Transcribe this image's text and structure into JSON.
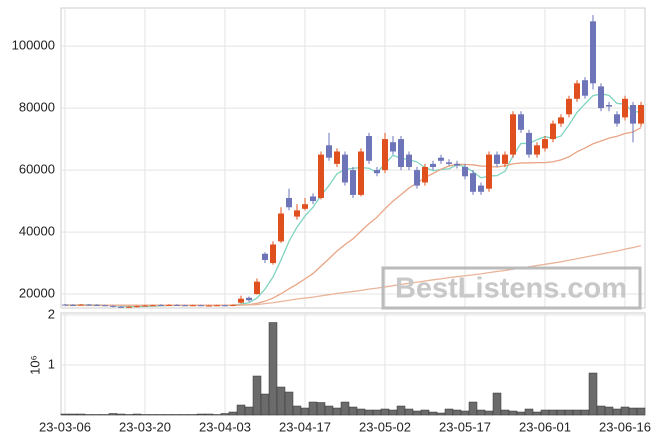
{
  "chart_data": [
    {
      "type": "candlestick",
      "categories": [
        "23-03-06",
        null,
        null,
        null,
        null,
        null,
        null,
        null,
        null,
        null,
        "23-03-20",
        null,
        null,
        null,
        null,
        null,
        null,
        null,
        null,
        null,
        "23-04-03",
        null,
        null,
        null,
        null,
        null,
        null,
        null,
        null,
        null,
        "23-04-17",
        null,
        null,
        null,
        null,
        null,
        null,
        null,
        null,
        null,
        "23-05-02",
        null,
        null,
        null,
        null,
        null,
        null,
        null,
        null,
        null,
        "23-05-17",
        null,
        null,
        null,
        null,
        null,
        null,
        null,
        null,
        null,
        "23-06-01",
        null,
        null,
        null,
        null,
        null,
        null,
        null,
        null,
        null,
        "23-06-16",
        null,
        null
      ],
      "open": [
        16600,
        16500,
        16500,
        16600,
        16500,
        16400,
        16200,
        15900,
        15800,
        15900,
        16200,
        16300,
        16500,
        16400,
        16500,
        16400,
        16300,
        16400,
        16200,
        16300,
        16400,
        16300,
        17200,
        18800,
        20000,
        33000,
        30000,
        37000,
        51000,
        45000,
        47500,
        51500,
        51000,
        68000,
        62000,
        65000,
        60000,
        52000,
        71000,
        60000,
        60000,
        69000,
        70000,
        65000,
        60000,
        56000,
        62000,
        64000,
        62500,
        62000,
        61000,
        59000,
        55000,
        54000,
        65000,
        62000,
        65000,
        78000,
        72000,
        65000,
        67000,
        70000,
        75000,
        78000,
        83000,
        89000,
        108000,
        87000,
        81000,
        78000,
        77000,
        81000,
        75000
      ],
      "high": [
        16800,
        16700,
        16800,
        16800,
        16700,
        16600,
        16400,
        16100,
        16100,
        16300,
        16500,
        16600,
        16700,
        16700,
        16700,
        16600,
        16600,
        16600,
        16500,
        16600,
        16600,
        16700,
        19500,
        19200,
        25000,
        33500,
        37000,
        48000,
        54000,
        49000,
        51000,
        52500,
        66000,
        72000,
        67000,
        66000,
        61000,
        67000,
        72000,
        61000,
        72000,
        71000,
        71000,
        66000,
        61000,
        62000,
        63000,
        65000,
        63500,
        63000,
        62000,
        60000,
        56000,
        66000,
        66000,
        66000,
        79000,
        79000,
        73000,
        69000,
        71000,
        76000,
        78000,
        84000,
        89000,
        90000,
        110000,
        88000,
        82000,
        79000,
        84000,
        82000,
        82000
      ],
      "low": [
        16300,
        16200,
        16300,
        16300,
        16200,
        16100,
        15700,
        15600,
        15600,
        15700,
        16000,
        16100,
        16200,
        16200,
        16200,
        16100,
        16100,
        16100,
        16000,
        16100,
        16100,
        16100,
        17000,
        17500,
        19800,
        30000,
        29500,
        36500,
        47000,
        44000,
        47000,
        49000,
        50500,
        63000,
        61000,
        55000,
        51000,
        51500,
        62000,
        58000,
        59000,
        65000,
        60000,
        60000,
        54000,
        55000,
        60000,
        62000,
        61500,
        60500,
        57000,
        52000,
        52000,
        53000,
        61000,
        61000,
        64000,
        72000,
        64000,
        64000,
        66000,
        69000,
        74000,
        77000,
        82000,
        83000,
        86000,
        79000,
        79000,
        74000,
        76000,
        69000,
        74000
      ],
      "close": [
        16500,
        16400,
        16600,
        16500,
        16400,
        16300,
        15900,
        15800,
        15900,
        16100,
        16300,
        16400,
        16400,
        16500,
        16400,
        16300,
        16400,
        16300,
        16300,
        16400,
        16300,
        16500,
        18500,
        18000,
        24000,
        31000,
        36000,
        46000,
        48000,
        47000,
        49000,
        50000,
        65000,
        64000,
        66000,
        56000,
        52000,
        66000,
        63000,
        59000,
        70000,
        66000,
        61000,
        61000,
        55000,
        61000,
        61000,
        63000,
        62000,
        61500,
        58000,
        53000,
        53000,
        65000,
        62000,
        65000,
        78000,
        73000,
        65000,
        68000,
        70000,
        75000,
        77000,
        83000,
        88000,
        84000,
        88000,
        80000,
        80500,
        75000,
        83000,
        75000,
        81000
      ],
      "up_color": "#e0501e",
      "down_color": "#6e74b8",
      "series": [
        {
          "color": "#7fd4c0",
          "values": [
            16500,
            16500,
            16500,
            16500,
            16500,
            16400,
            16200,
            16100,
            16000,
            16000,
            16000,
            16100,
            16200,
            16300,
            16400,
            16400,
            16400,
            16400,
            16300,
            16300,
            16300,
            16400,
            16800,
            17200,
            18700,
            21600,
            25500,
            31000,
            37000,
            41600,
            45200,
            48000,
            51800,
            55000,
            58800,
            60200,
            60600,
            60800,
            60600,
            59200,
            62000,
            64800,
            63800,
            63400,
            62600,
            60800,
            59800,
            60200,
            60400,
            61700,
            61100,
            59500,
            57500,
            58100,
            58200,
            59600,
            64600,
            68600,
            68600,
            69800,
            70800,
            70200,
            71000,
            74600,
            78600,
            81400,
            84000,
            84600,
            84100,
            81500,
            81300,
            78700,
            78900
          ]
        },
        {
          "color": "#e8a585",
          "values": [
            16400,
            16400,
            16400,
            16400,
            16400,
            16400,
            16400,
            16400,
            16400,
            16400,
            16400,
            16400,
            16400,
            16400,
            16400,
            16400,
            16400,
            16400,
            16400,
            16400,
            16400,
            16400,
            16500,
            16600,
            17000,
            17700,
            18700,
            20100,
            21700,
            23200,
            24900,
            26600,
            29000,
            31400,
            33900,
            36000,
            37800,
            40300,
            42700,
            44800,
            47500,
            50000,
            52100,
            54200,
            55800,
            57600,
            58900,
            60300,
            61300,
            61900,
            61800,
            61700,
            61300,
            61200,
            61000,
            61400,
            62000,
            62300,
            62300,
            62400,
            62400,
            62700,
            63300,
            64300,
            65900,
            67100,
            68500,
            69400,
            70300,
            70900,
            71800,
            72300,
            73700
          ]
        },
        {
          "color": "#eab59a",
          "values": [
            16300,
            16300,
            16300,
            16300,
            16300,
            16300,
            16300,
            16300,
            16300,
            16300,
            16300,
            16300,
            16300,
            16300,
            16300,
            16300,
            16300,
            16300,
            16300,
            16300,
            16300,
            16300,
            16400,
            16500,
            16600,
            16900,
            17200,
            17600,
            18000,
            18400,
            18700,
            19000,
            19400,
            19800,
            20200,
            20500,
            20800,
            21200,
            21600,
            21900,
            22300,
            22700,
            23100,
            23500,
            23800,
            24200,
            24600,
            24900,
            25300,
            25600,
            25900,
            26200,
            26500,
            26900,
            27300,
            27600,
            28000,
            28400,
            28800,
            29200,
            29600,
            30000,
            30400,
            30900,
            31400,
            31900,
            32400,
            32900,
            33400,
            33900,
            34500,
            35000,
            35600
          ]
        }
      ],
      "ylim": [
        15500,
        112300
      ],
      "yticks": [
        20000,
        40000,
        60000,
        80000,
        100000
      ],
      "grid": true,
      "watermark": "BestListens.com"
    },
    {
      "type": "bar",
      "ylabel": "10⁶",
      "color": "#6b6b6b",
      "values": [
        0.02,
        0.02,
        0.02,
        0.01,
        0.01,
        0.01,
        0.03,
        0.02,
        0.01,
        0.02,
        0.01,
        0.01,
        0.01,
        0.01,
        0.01,
        0.01,
        0.01,
        0.02,
        0.02,
        0.01,
        0.03,
        0.06,
        0.2,
        0.16,
        0.78,
        0.42,
        1.85,
        0.56,
        0.46,
        0.18,
        0.14,
        0.26,
        0.25,
        0.18,
        0.14,
        0.26,
        0.16,
        0.12,
        0.1,
        0.1,
        0.12,
        0.1,
        0.18,
        0.12,
        0.08,
        0.1,
        0.06,
        0.04,
        0.12,
        0.1,
        0.08,
        0.26,
        0.1,
        0.08,
        0.44,
        0.1,
        0.08,
        0.06,
        0.12,
        0.06,
        0.1,
        0.1,
        0.1,
        0.1,
        0.1,
        0.1,
        0.84,
        0.18,
        0.16,
        0.12,
        0.16,
        0.14,
        0.14
      ],
      "ylim": [
        0,
        2.04
      ],
      "yticks": [
        1,
        2
      ],
      "grid": true
    }
  ]
}
